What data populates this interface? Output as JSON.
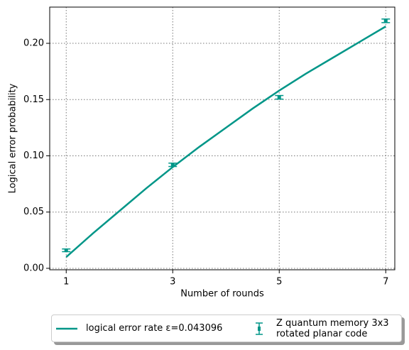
{
  "chart_data": {
    "type": "line",
    "xlabel": "Number of rounds",
    "ylabel": "Logical error probability",
    "xlim": [
      0.69,
      7.17
    ],
    "ylim": [
      -0.0013,
      0.2322
    ],
    "xticks": [
      1,
      3,
      5,
      7
    ],
    "yticks": [
      {
        "value": 0,
        "label": "0.00"
      },
      {
        "value": 0.05,
        "label": "0.05"
      },
      {
        "value": 0.1,
        "label": "0.10"
      },
      {
        "value": 0.15,
        "label": "0.15"
      },
      {
        "value": 0.2,
        "label": "0.20"
      }
    ],
    "grid": true,
    "series": [
      {
        "name": "logical error rate ε=0.043096",
        "type": "line",
        "color": "#009688",
        "x": [
          1,
          1.5,
          2,
          2.5,
          3,
          3.5,
          4,
          4.5,
          5,
          5.5,
          6,
          6.5,
          7
        ],
        "values": [
          0.01,
          0.031,
          0.051,
          0.071,
          0.09,
          0.108,
          0.125,
          0.142,
          0.158,
          0.173,
          0.187,
          0.201,
          0.215
        ]
      },
      {
        "name": "Z quantum memory 3x3\nrotated planar code",
        "type": "errorbar",
        "color": "#009688",
        "x": [
          1,
          3,
          5,
          7
        ],
        "values": [
          0.016,
          0.092,
          0.152,
          0.22
        ],
        "errors": [
          0.0012,
          0.0015,
          0.0016,
          0.0016
        ]
      }
    ]
  }
}
